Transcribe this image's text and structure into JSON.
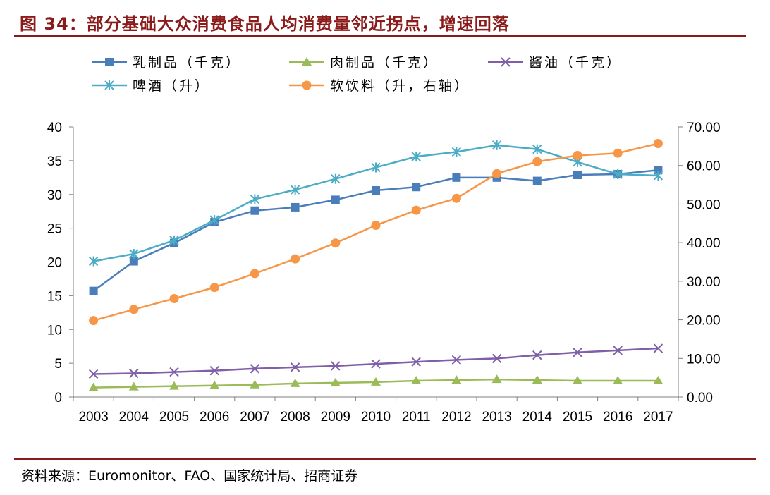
{
  "header": {
    "title": "图 34：部分基础大众消费食品人均消费量邻近拐点，增速回落"
  },
  "footer": {
    "source": "资料来源：Euromonitor、FAO、国家统计局、招商证券"
  },
  "chart_data": {
    "type": "line",
    "x": [
      "2003",
      "2004",
      "2005",
      "2006",
      "2007",
      "2008",
      "2009",
      "2010",
      "2011",
      "2012",
      "2013",
      "2014",
      "2015",
      "2016",
      "2017"
    ],
    "y_left": {
      "ylim": [
        0,
        40
      ],
      "ticks": [
        "0",
        "5",
        "10",
        "15",
        "20",
        "25",
        "30",
        "35",
        "40"
      ],
      "tick_values": [
        0,
        5,
        10,
        15,
        20,
        25,
        30,
        35,
        40
      ]
    },
    "y_right": {
      "ylim": [
        0,
        70
      ],
      "ticks": [
        "0.00",
        "10.00",
        "20.00",
        "30.00",
        "40.00",
        "50.00",
        "60.00",
        "70.00"
      ],
      "tick_values": [
        0,
        10,
        20,
        30,
        40,
        50,
        60,
        70
      ]
    },
    "grid": false,
    "legend_position": "top",
    "series": [
      {
        "name": "乳制品（千克）",
        "axis": "left",
        "color": "#4a7ebb",
        "marker": "square",
        "values": [
          15.7,
          20.1,
          22.8,
          25.9,
          27.6,
          28.1,
          29.2,
          30.6,
          31.1,
          32.5,
          32.5,
          32.0,
          32.9,
          33.0,
          33.6
        ]
      },
      {
        "name": "肉制品（千克）",
        "axis": "left",
        "color": "#9bbb59",
        "marker": "triangle",
        "values": [
          1.4,
          1.5,
          1.6,
          1.7,
          1.8,
          2.0,
          2.1,
          2.2,
          2.4,
          2.5,
          2.6,
          2.5,
          2.4,
          2.4,
          2.4
        ]
      },
      {
        "name": "酱油（千克）",
        "axis": "left",
        "color": "#7f5fa8",
        "marker": "x",
        "values": [
          3.4,
          3.5,
          3.7,
          3.9,
          4.2,
          4.4,
          4.6,
          4.9,
          5.2,
          5.5,
          5.7,
          6.2,
          6.6,
          6.9,
          7.2
        ]
      },
      {
        "name": "啤酒（升）",
        "axis": "left",
        "color": "#4bacc6",
        "marker": "star",
        "values": [
          20.1,
          21.2,
          23.2,
          26.2,
          29.3,
          30.7,
          32.3,
          34.0,
          35.6,
          36.3,
          37.3,
          36.7,
          34.8,
          33.0,
          32.8
        ]
      },
      {
        "name": "软饮料（升，右轴）",
        "axis": "right",
        "color": "#f79646",
        "marker": "circle",
        "values": [
          19.8,
          22.7,
          25.5,
          28.4,
          32.0,
          35.8,
          39.9,
          44.5,
          48.4,
          51.5,
          57.9,
          61.0,
          62.6,
          63.2,
          65.7
        ]
      }
    ]
  }
}
